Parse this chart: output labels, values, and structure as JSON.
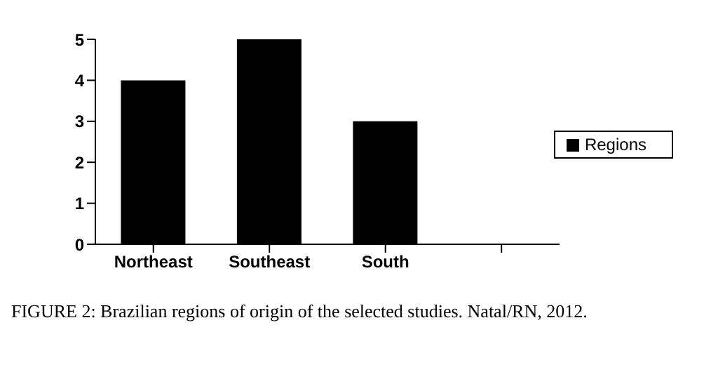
{
  "chart_data": {
    "type": "bar",
    "categories": [
      "Northeast",
      "Southeast",
      "South",
      null
    ],
    "series": [
      {
        "name": "Regions",
        "color": "#000000",
        "values": [
          4,
          5,
          3,
          null
        ]
      }
    ],
    "ylim": [
      0,
      5
    ],
    "yticks": [
      0,
      1,
      2,
      3,
      4,
      5
    ],
    "grid": false,
    "legend": "right",
    "annotations": [
      "FIGURE 2: Brazilian regions of origin of the selected studies. Natal/RN, 2012."
    ]
  }
}
